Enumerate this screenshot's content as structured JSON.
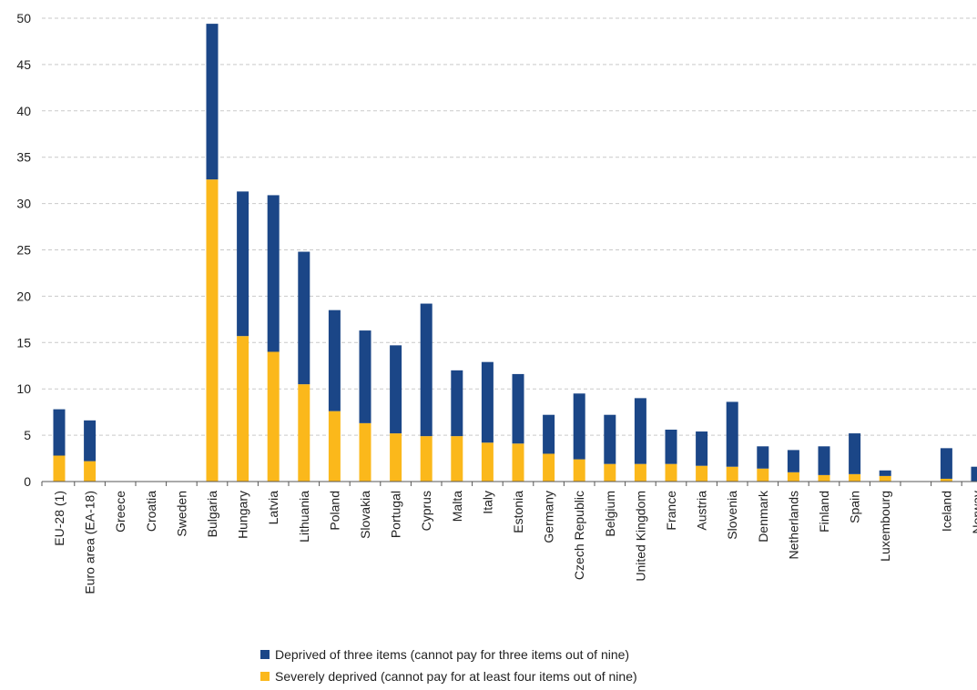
{
  "chart_data": {
    "type": "bar",
    "stacked": true,
    "title": "",
    "xlabel": "",
    "ylabel": "",
    "ylim": [
      0,
      50
    ],
    "yticks": [
      0,
      5,
      10,
      15,
      20,
      25,
      30,
      35,
      40,
      45,
      50
    ],
    "grid": true,
    "legend_position": "bottom",
    "categories": [
      "EU-28 (1)",
      "Euro area (EA-18)",
      "Greece",
      "Croatia",
      "Sweden",
      "Bulgaria",
      "Hungary",
      "Latvia",
      "Lithuania",
      "Poland",
      "Slovakia",
      "Portugal",
      "Cyprus",
      "Malta",
      "Italy",
      "Estonia",
      "Germany",
      "Czech Republic",
      "Belgium",
      "United Kingdom",
      "France",
      "Austria",
      "Slovenia",
      "Denmark",
      "Netherlands",
      "Finland",
      "Spain",
      "Luxembourg",
      "",
      "Iceland",
      "Norway"
    ],
    "series": [
      {
        "name": "Severely deprived (cannot pay for at least four items out of nine)",
        "color": "#fbb81b",
        "values": [
          2.8,
          2.2,
          null,
          null,
          null,
          32.6,
          15.7,
          14.0,
          10.5,
          7.6,
          6.3,
          5.2,
          4.9,
          4.9,
          4.2,
          4.1,
          3.0,
          2.4,
          1.9,
          1.9,
          1.9,
          1.7,
          1.6,
          1.4,
          1.0,
          0.7,
          0.8,
          0.6,
          null,
          0.3,
          0.0
        ]
      },
      {
        "name": "Deprived of three items (cannot pay for three items out of nine)",
        "color": "#1b4687",
        "values": [
          5.0,
          4.4,
          null,
          null,
          null,
          16.8,
          15.6,
          16.9,
          14.3,
          10.9,
          10.0,
          9.5,
          14.3,
          7.1,
          8.7,
          7.5,
          4.2,
          7.1,
          5.3,
          7.1,
          3.7,
          3.7,
          7.0,
          2.4,
          2.4,
          3.1,
          4.4,
          0.6,
          null,
          3.3,
          1.6
        ]
      }
    ]
  }
}
